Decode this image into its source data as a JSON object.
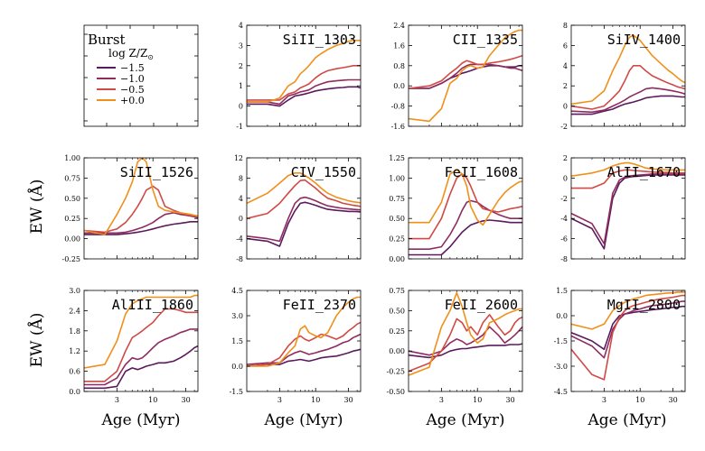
{
  "chart_data": {
    "type": "line",
    "legend": {
      "title": "Burst",
      "subtitle": "log Z/Z",
      "subtitle_sub": "⊙",
      "entries": [
        {
          "label": "−1.5",
          "color": "#5a1a5e"
        },
        {
          "label": "−1.0",
          "color": "#8f2c5f"
        },
        {
          "label": "−0.5",
          "color": "#d04a45"
        },
        {
          "label": "+0.0",
          "color": "#f0901a"
        }
      ]
    },
    "ylabel": "EW (Å)",
    "xlabel": "Age (Myr)",
    "xlim": [
      1,
      45
    ],
    "x_ticks": [
      3,
      10,
      30
    ],
    "x_tick_labels": [
      "3",
      "10",
      "30"
    ],
    "x": [
      1,
      2,
      3,
      4,
      5,
      6,
      7,
      8,
      10,
      12,
      15,
      20,
      25,
      30,
      35,
      40,
      45
    ],
    "panels": [
      {
        "title": "SiII_1303",
        "ylim": [
          -1,
          4
        ],
        "y_ticks": [
          -1,
          0,
          1,
          2,
          3,
          4
        ],
        "y_tick_labels": [
          "-1",
          "0",
          "1",
          "2",
          "3",
          "4"
        ],
        "series": [
          [
            0.1,
            0.1,
            0.0,
            0.3,
            0.5,
            0.55,
            0.6,
            0.65,
            0.75,
            0.8,
            0.85,
            0.9,
            0.92,
            0.95,
            0.95,
            0.95,
            0.9
          ],
          [
            0.2,
            0.2,
            0.1,
            0.5,
            0.6,
            0.7,
            0.75,
            0.8,
            1.0,
            1.1,
            1.2,
            1.25,
            1.28,
            1.3,
            1.3,
            1.3,
            1.3
          ],
          [
            0.3,
            0.3,
            0.3,
            0.6,
            0.7,
            0.9,
            1.0,
            1.1,
            1.4,
            1.6,
            1.75,
            1.85,
            1.9,
            1.95,
            2.0,
            2.0,
            2.0
          ],
          [
            0.2,
            0.2,
            0.4,
            1.0,
            1.2,
            1.6,
            1.8,
            2.0,
            2.4,
            2.6,
            2.8,
            3.0,
            3.1,
            3.2,
            3.25,
            3.25,
            3.25
          ]
        ]
      },
      {
        "title": "CII_1335",
        "ylim": [
          -1.6,
          2.4
        ],
        "y_ticks": [
          -1.6,
          -0.8,
          0,
          0.8,
          1.6,
          2.4
        ],
        "y_tick_labels": [
          "-1.6",
          "-0.8",
          "0.0",
          "0.8",
          "1.6",
          "2.4"
        ],
        "series": [
          [
            -0.1,
            -0.1,
            0.1,
            0.3,
            0.4,
            0.5,
            0.55,
            0.6,
            0.7,
            0.75,
            0.8,
            0.8,
            0.75,
            0.75,
            0.75,
            0.8,
            0.8
          ],
          [
            -0.1,
            -0.1,
            0.1,
            0.3,
            0.5,
            0.7,
            0.8,
            0.85,
            0.85,
            0.85,
            0.85,
            0.8,
            0.75,
            0.7,
            0.7,
            0.65,
            0.6
          ],
          [
            -0.1,
            0.0,
            0.2,
            0.5,
            0.7,
            0.9,
            1.0,
            0.95,
            0.85,
            0.85,
            0.9,
            0.95,
            1.0,
            1.05,
            1.1,
            1.15,
            1.2
          ],
          [
            -1.3,
            -1.4,
            -0.9,
            0.1,
            0.3,
            0.6,
            0.75,
            0.8,
            0.7,
            0.75,
            1.2,
            1.6,
            1.9,
            2.05,
            2.15,
            2.2,
            2.2
          ]
        ]
      },
      {
        "title": "SiIV_1400",
        "ylim": [
          -2,
          8
        ],
        "y_ticks": [
          -2,
          0,
          2,
          4,
          6,
          8
        ],
        "y_tick_labels": [
          "-2",
          "0",
          "2",
          "4",
          "6",
          "8"
        ],
        "series": [
          [
            -0.8,
            -0.8,
            -0.5,
            -0.3,
            0.0,
            0.2,
            0.3,
            0.4,
            0.6,
            0.8,
            0.9,
            1.0,
            1.0,
            1.0,
            0.95,
            0.9,
            0.9
          ],
          [
            -0.5,
            -0.6,
            -0.4,
            0.0,
            0.3,
            0.6,
            0.9,
            1.1,
            1.4,
            1.7,
            1.8,
            1.7,
            1.6,
            1.5,
            1.4,
            1.3,
            1.2
          ],
          [
            0.0,
            -0.3,
            0.0,
            0.8,
            1.5,
            2.5,
            3.5,
            4.0,
            4.0,
            3.5,
            3.0,
            2.6,
            2.3,
            2.1,
            1.9,
            1.8,
            1.7
          ],
          [
            0.2,
            0.5,
            1.5,
            3.5,
            4.8,
            6.0,
            6.8,
            7.0,
            6.5,
            5.8,
            5.0,
            4.2,
            3.6,
            3.2,
            2.8,
            2.5,
            2.3
          ]
        ]
      },
      {
        "title": "SiII_1526",
        "ylim": [
          -0.25,
          1.0
        ],
        "y_ticks": [
          -0.25,
          0,
          0.25,
          0.5,
          0.75,
          1.0
        ],
        "y_tick_labels": [
          "-0.25",
          "0.00",
          "0.25",
          "0.50",
          "0.75",
          "1.00"
        ],
        "series": [
          [
            0.05,
            0.05,
            0.05,
            0.06,
            0.07,
            0.08,
            0.09,
            0.1,
            0.12,
            0.14,
            0.16,
            0.18,
            0.19,
            0.2,
            0.21,
            0.21,
            0.21
          ],
          [
            0.07,
            0.07,
            0.07,
            0.08,
            0.1,
            0.12,
            0.14,
            0.16,
            0.2,
            0.25,
            0.3,
            0.32,
            0.3,
            0.29,
            0.28,
            0.27,
            0.26
          ],
          [
            0.1,
            0.08,
            0.12,
            0.2,
            0.3,
            0.4,
            0.5,
            0.6,
            0.65,
            0.6,
            0.4,
            0.35,
            0.32,
            0.3,
            0.29,
            0.28,
            0.27
          ],
          [
            0.1,
            0.05,
            0.3,
            0.5,
            0.7,
            0.95,
            1.0,
            0.95,
            0.6,
            0.4,
            0.35,
            0.33,
            0.32,
            0.31,
            0.3,
            0.29,
            0.28
          ]
        ]
      },
      {
        "title": "CIV_1550",
        "ylim": [
          -8,
          12
        ],
        "y_ticks": [
          -8,
          -4,
          0,
          4,
          8,
          12
        ],
        "y_tick_labels": [
          "-8",
          "-4",
          "0",
          "4",
          "8",
          "12"
        ],
        "series": [
          [
            -4.0,
            -4.5,
            -5.5,
            -1.0,
            1.5,
            3.0,
            3.2,
            3.0,
            2.6,
            2.2,
            1.8,
            1.6,
            1.5,
            1.4,
            1.4,
            1.35,
            1.3
          ],
          [
            -3.5,
            -4.0,
            -4.5,
            0.0,
            3.0,
            4.0,
            4.2,
            4.0,
            3.5,
            3.0,
            2.5,
            2.2,
            2.0,
            1.9,
            1.8,
            1.75,
            1.7
          ],
          [
            0.0,
            1.0,
            3.0,
            5.0,
            6.5,
            7.5,
            7.6,
            7.0,
            6.0,
            5.0,
            4.0,
            3.5,
            3.0,
            2.8,
            2.6,
            2.5,
            2.4
          ],
          [
            3.0,
            5.0,
            7.0,
            8.5,
            9.0,
            9.0,
            8.5,
            8.0,
            7.0,
            6.0,
            5.0,
            4.2,
            3.8,
            3.5,
            3.3,
            3.2,
            3.1
          ]
        ]
      },
      {
        "title": "FeII_1608",
        "ylim": [
          0.0,
          1.25
        ],
        "y_ticks": [
          0,
          0.25,
          0.5,
          0.75,
          1.0,
          1.25
        ],
        "y_tick_labels": [
          "0.00",
          "0.25",
          "0.50",
          "0.75",
          "1.00",
          "1.25"
        ],
        "series": [
          [
            0.05,
            0.05,
            0.05,
            0.15,
            0.25,
            0.33,
            0.38,
            0.42,
            0.45,
            0.47,
            0.48,
            0.47,
            0.46,
            0.45,
            0.45,
            0.45,
            0.45
          ],
          [
            0.12,
            0.12,
            0.15,
            0.3,
            0.45,
            0.6,
            0.7,
            0.72,
            0.7,
            0.65,
            0.6,
            0.55,
            0.52,
            0.5,
            0.5,
            0.5,
            0.5
          ],
          [
            0.25,
            0.25,
            0.5,
            0.8,
            1.0,
            1.05,
            1.0,
            0.9,
            0.7,
            0.62,
            0.6,
            0.58,
            0.6,
            0.62,
            0.63,
            0.64,
            0.65
          ],
          [
            0.45,
            0.45,
            0.7,
            1.05,
            1.1,
            1.05,
            0.9,
            0.65,
            0.48,
            0.42,
            0.55,
            0.72,
            0.82,
            0.88,
            0.92,
            0.95,
            0.96
          ]
        ]
      },
      {
        "title": "AlII_1670",
        "ylim": [
          -8,
          2
        ],
        "y_ticks": [
          -8,
          -6,
          -4,
          -2,
          0,
          2
        ],
        "y_tick_labels": [
          "-8",
          "-6",
          "-4",
          "-2",
          "0",
          "2"
        ],
        "series": [
          [
            -4.0,
            -5.0,
            -7.0,
            -2.0,
            -0.5,
            0.0,
            0.1,
            0.15,
            0.2,
            0.25,
            0.3,
            0.3,
            0.3,
            0.3,
            0.3,
            0.3,
            0.3
          ],
          [
            -3.5,
            -4.5,
            -6.5,
            -1.5,
            -0.2,
            0.1,
            0.2,
            0.25,
            0.3,
            0.35,
            0.4,
            0.4,
            0.4,
            0.4,
            0.4,
            0.4,
            0.4
          ],
          [
            -1.0,
            -1.0,
            -0.5,
            0.5,
            0.7,
            0.8,
            0.8,
            0.75,
            0.7,
            0.65,
            0.6,
            0.55,
            0.55,
            0.5,
            0.5,
            0.5,
            0.5
          ],
          [
            0.2,
            0.5,
            0.8,
            1.2,
            1.4,
            1.5,
            1.5,
            1.4,
            1.2,
            1.0,
            0.9,
            0.85,
            0.8,
            0.8,
            0.8,
            0.8,
            0.8
          ]
        ]
      },
      {
        "title": "AlIII_1860",
        "ylim": [
          0.0,
          3.0
        ],
        "y_ticks": [
          0,
          0.6,
          1.2,
          1.8,
          2.4,
          3.0
        ],
        "y_tick_labels": [
          "0.0",
          "0.6",
          "1.2",
          "1.8",
          "2.4",
          "3.0"
        ],
        "series": [
          [
            0.1,
            0.1,
            0.15,
            0.6,
            0.7,
            0.65,
            0.7,
            0.75,
            0.8,
            0.85,
            0.85,
            0.9,
            1.0,
            1.1,
            1.2,
            1.3,
            1.35
          ],
          [
            0.2,
            0.2,
            0.4,
            0.8,
            1.0,
            0.95,
            1.0,
            1.1,
            1.3,
            1.45,
            1.55,
            1.65,
            1.75,
            1.8,
            1.85,
            1.85,
            1.85
          ],
          [
            0.3,
            0.3,
            0.6,
            1.2,
            1.6,
            1.7,
            1.8,
            1.9,
            2.05,
            2.25,
            2.45,
            2.45,
            2.4,
            2.35,
            2.35,
            2.35,
            2.35
          ],
          [
            0.7,
            0.8,
            1.5,
            2.3,
            2.6,
            2.7,
            2.75,
            2.8,
            2.8,
            2.8,
            2.8,
            2.8,
            2.8,
            2.8,
            2.8,
            2.85,
            2.85
          ]
        ]
      },
      {
        "title": "FeII_2370",
        "ylim": [
          -1.5,
          4.5
        ],
        "y_ticks": [
          -1.5,
          0,
          1.5,
          3.0,
          4.5
        ],
        "y_tick_labels": [
          "-1.5",
          "0.0",
          "1.5",
          "3.0",
          "4.5"
        ],
        "series": [
          [
            0.0,
            0.1,
            0.1,
            0.3,
            0.35,
            0.4,
            0.35,
            0.3,
            0.4,
            0.5,
            0.55,
            0.6,
            0.7,
            0.8,
            0.9,
            0.95,
            1.0
          ],
          [
            0.1,
            0.2,
            0.2,
            0.6,
            0.8,
            0.9,
            0.8,
            0.7,
            0.8,
            0.9,
            1.0,
            1.2,
            1.4,
            1.5,
            1.7,
            1.8,
            1.9
          ],
          [
            0.0,
            0.1,
            0.5,
            1.2,
            1.6,
            1.8,
            1.6,
            1.5,
            1.7,
            1.9,
            1.8,
            1.6,
            1.8,
            2.1,
            2.3,
            2.5,
            2.6
          ],
          [
            0.0,
            0.0,
            0.2,
            0.8,
            1.2,
            2.2,
            2.4,
            2.0,
            1.8,
            1.7,
            2.0,
            3.0,
            3.5,
            3.8,
            4.0,
            4.1,
            4.1
          ]
        ]
      },
      {
        "title": "FeII_2600",
        "ylim": [
          -0.5,
          0.75
        ],
        "y_ticks": [
          -0.5,
          -0.25,
          0,
          0.25,
          0.5,
          0.75
        ],
        "y_tick_labels": [
          "-0.50",
          "-0.25",
          "0.00",
          "0.25",
          "0.50",
          "0.75"
        ],
        "series": [
          [
            -0.05,
            -0.08,
            -0.05,
            0.0,
            0.02,
            0.03,
            0.03,
            0.04,
            0.05,
            0.06,
            0.07,
            0.07,
            0.07,
            0.08,
            0.08,
            0.08,
            0.09
          ],
          [
            0.0,
            -0.05,
            0.0,
            0.1,
            0.15,
            0.12,
            0.08,
            0.1,
            0.15,
            0.2,
            0.3,
            0.2,
            0.1,
            0.15,
            0.2,
            0.25,
            0.3
          ],
          [
            -0.25,
            -0.15,
            0.0,
            0.2,
            0.4,
            0.35,
            0.25,
            0.3,
            0.2,
            0.35,
            0.45,
            0.3,
            0.2,
            0.25,
            0.35,
            0.4,
            0.42
          ],
          [
            -0.3,
            -0.2,
            0.3,
            0.5,
            0.72,
            0.55,
            0.35,
            0.2,
            0.1,
            0.15,
            0.35,
            0.4,
            0.45,
            0.48,
            0.5,
            0.52,
            0.52
          ]
        ]
      },
      {
        "title": "MgII_2800",
        "ylim": [
          -4.5,
          1.5
        ],
        "y_ticks": [
          -4.5,
          -3.0,
          -1.5,
          0,
          1.5
        ],
        "y_tick_labels": [
          "-4.5",
          "-3.0",
          "-1.5",
          "0.0",
          "1.5"
        ],
        "series": [
          [
            -1.0,
            -1.5,
            -2.0,
            -0.5,
            0.0,
            0.1,
            0.15,
            0.2,
            0.25,
            0.3,
            0.35,
            0.4,
            0.45,
            0.5,
            0.5,
            0.55,
            0.55
          ],
          [
            -1.2,
            -1.8,
            -2.5,
            -0.8,
            -0.2,
            0.1,
            0.2,
            0.3,
            0.4,
            0.5,
            0.6,
            0.65,
            0.7,
            0.75,
            0.8,
            0.85,
            0.85
          ],
          [
            -2.0,
            -3.5,
            -3.8,
            -1.0,
            -0.1,
            0.3,
            0.5,
            0.6,
            0.7,
            0.8,
            0.9,
            1.0,
            1.05,
            1.1,
            1.15,
            1.2,
            1.2
          ],
          [
            -0.5,
            -0.8,
            -0.5,
            0.3,
            0.6,
            0.8,
            0.9,
            1.0,
            1.1,
            1.2,
            1.25,
            1.3,
            1.35,
            1.35,
            1.4,
            1.4,
            1.4
          ]
        ]
      }
    ]
  }
}
